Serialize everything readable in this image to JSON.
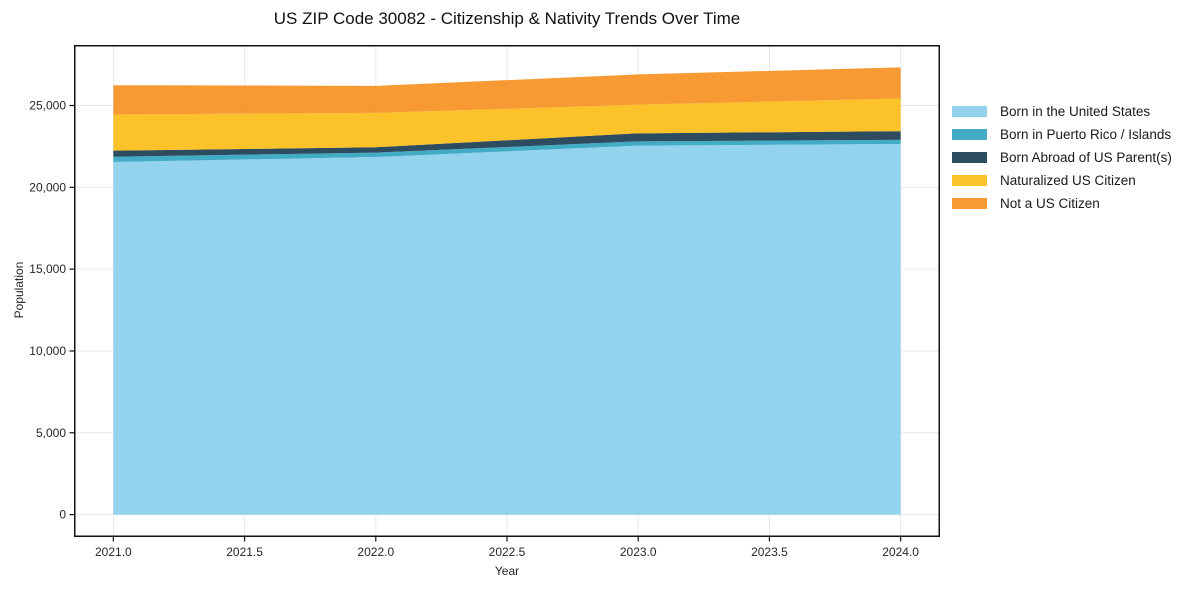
{
  "chart_data": {
    "type": "area",
    "stacked": true,
    "title": "US ZIP Code 30082 - Citizenship & Nativity Trends Over Time",
    "xlabel": "Year",
    "ylabel": "Population",
    "x": [
      2021,
      2022,
      2023,
      2024
    ],
    "series": [
      {
        "name": "Born in the United States",
        "color": "#87CEEB",
        "values": [
          21550,
          21850,
          22550,
          22650
        ]
      },
      {
        "name": "Born in Puerto Rico / Islands",
        "color": "#2FA3BF",
        "values": [
          320,
          270,
          260,
          250
        ]
      },
      {
        "name": "Born Abroad of US Parent(s)",
        "color": "#16384E",
        "values": [
          370,
          330,
          490,
          530
        ]
      },
      {
        "name": "Naturalized US Citizen",
        "color": "#FCBB13",
        "values": [
          2210,
          2100,
          1750,
          2000
        ]
      },
      {
        "name": "Not a US Citizen",
        "color": "#F78F1E",
        "values": [
          1790,
          1650,
          1850,
          1900
        ]
      }
    ],
    "x_tick_labels": [
      "2021.0",
      "2021.5",
      "2022.0",
      "2022.5",
      "2023.0",
      "2023.5",
      "2024.0"
    ],
    "x_tick_values": [
      2021,
      2021.5,
      2022,
      2022.5,
      2023,
      2023.5,
      2024
    ],
    "y_tick_labels": [
      "0",
      "5,000",
      "10,000",
      "15,000",
      "20,000",
      "25,000"
    ],
    "y_tick_values": [
      0,
      5000,
      10000,
      15000,
      20000,
      25000
    ],
    "xlim": [
      2020.85,
      2024.15
    ],
    "ylim": [
      -1367,
      28697
    ],
    "grid": true,
    "grid_color": "#e9e9e9",
    "spine_color": "#111111",
    "fill_opacity": 0.9,
    "legend_position": "right"
  }
}
